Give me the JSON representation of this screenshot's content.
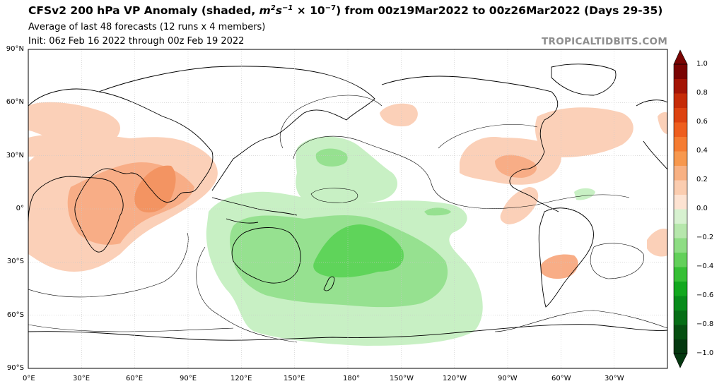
{
  "title": {
    "prefix": "CFSv2 200 hPa VP Anomaly (shaded, ",
    "unit_m": "m",
    "unit_m_exp": "2",
    "unit_s": "s",
    "unit_s_exp": "−1",
    "unit_times": " × 10",
    "unit_ten_exp": "−7",
    "suffix": ") from 00z19Mar2022 to 00z26Mar2022 (Days 29-35)"
  },
  "subtitle1": "Average of last 48 forecasts (12 runs x 4 members)",
  "subtitle2": "Init: 06z Feb 16 2022 through 00z Feb 19 2022",
  "watermark": "TROPICALTIDBITS.COM",
  "lat_labels": [
    "90°N",
    "60°N",
    "30°N",
    "0°",
    "30°S",
    "60°S",
    "90°S"
  ],
  "lon_labels": [
    "0°E",
    "30°E",
    "60°E",
    "90°E",
    "120°E",
    "150°E",
    "180°",
    "150°W",
    "120°W",
    "90°W",
    "60°W",
    "30°W"
  ],
  "colorbar": {
    "labels": [
      "1.0",
      "0.8",
      "0.6",
      "0.4",
      "0.2",
      "0.0",
      "−0.2",
      "−0.4",
      "−0.6",
      "−0.8",
      "−1.0"
    ],
    "pos_colors": [
      "#7a0403",
      "#a41405",
      "#c62b07",
      "#dd4210",
      "#ee5e1e",
      "#f57c32",
      "#f7984e",
      "#f8b183",
      "#fbcdb0",
      "#fde3d2"
    ],
    "neg_colors": [
      "#d7f1d0",
      "#b6e7ac",
      "#8edd84",
      "#63d05a",
      "#36bf35",
      "#12a81e",
      "#088c1b",
      "#066e16",
      "#064f11",
      "#053810"
    ]
  },
  "colors": {
    "land_outline": "#000000",
    "grid": "#c8c8c8",
    "orange_light": "#fbd0b8",
    "orange_mid": "#f8ad86",
    "orange_strong": "#f39462",
    "green_light": "#c8f0c4",
    "green_mid": "#96e190",
    "green_strong": "#5fd45a"
  }
}
